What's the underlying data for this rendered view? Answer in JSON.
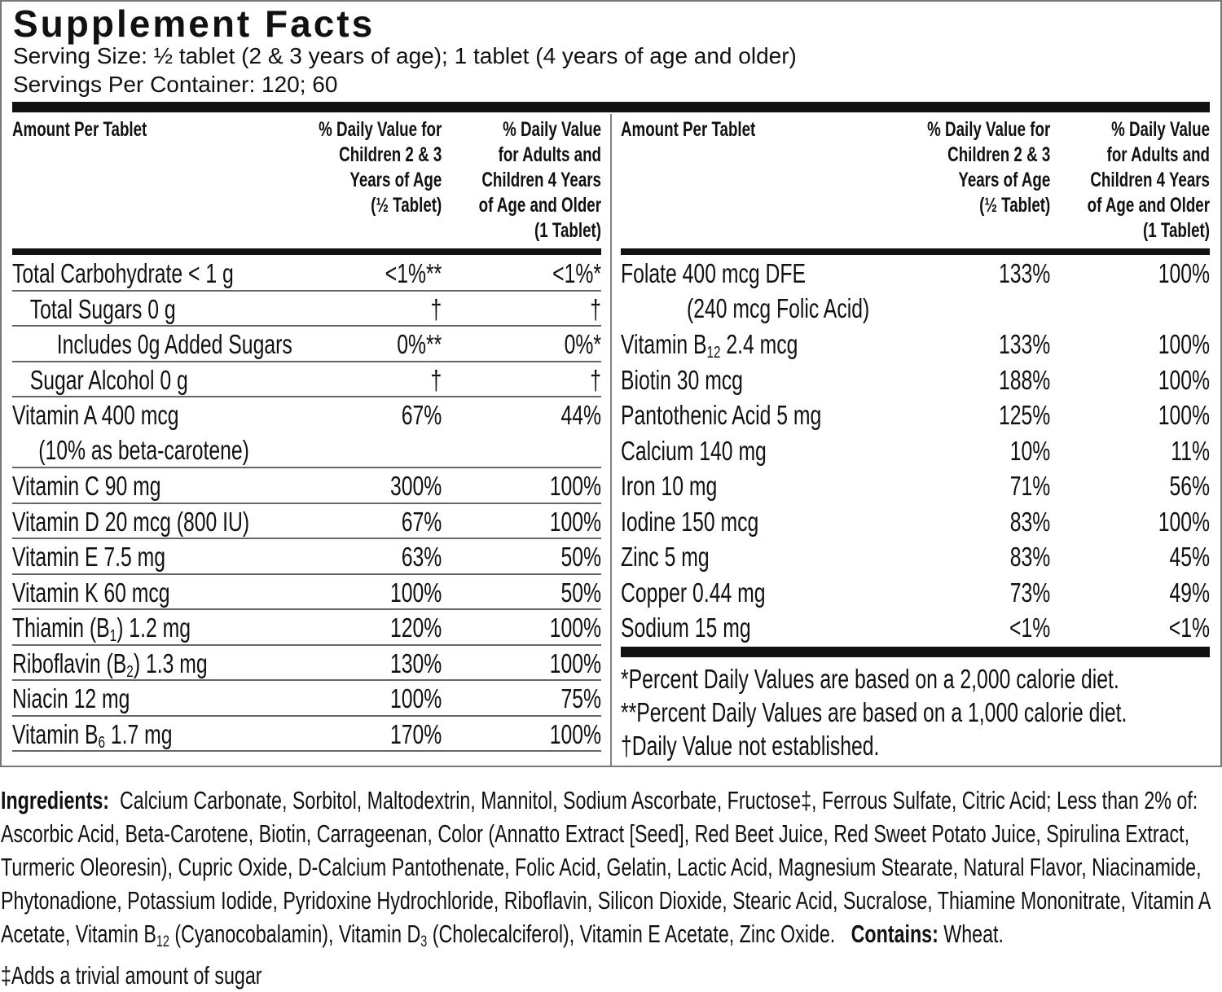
{
  "header": {
    "title": "Supplement Facts",
    "serving_size": "Serving Size:  ½ tablet (2 & 3 years of age); 1 tablet (4 years of age and older)",
    "servings_per_container": "Servings Per Container:  120; 60"
  },
  "columns": [
    [
      "Amount Per Tablet"
    ],
    [
      "% Daily Value for",
      "Children 2 & 3",
      "Years of Age",
      "(½ Tablet)"
    ],
    [
      "% Daily Value",
      "for Adults and",
      "Children 4 Years",
      "of Age and Older",
      "(1 Tablet)"
    ]
  ],
  "left_rows": [
    {
      "label": [
        "Total Carbohydrate < 1 g"
      ],
      "children": "<1%**",
      "adults": "<1%*"
    },
    {
      "label": [
        "Total Sugars 0 g"
      ],
      "children": "†",
      "adults": "†",
      "indent": 1
    },
    {
      "label": [
        "Includes 0g Added Sugars"
      ],
      "children": "0%**",
      "adults": "0%*",
      "indent": 2
    },
    {
      "label": [
        "Sugar Alcohol 0 g"
      ],
      "children": "†",
      "adults": "†",
      "indent": 1
    },
    {
      "label": [
        "Vitamin A 400 mcg"
      ],
      "note": "(10% as beta-carotene)",
      "children": "67%",
      "adults": "44%"
    },
    {
      "label": [
        "Vitamin C 90 mg"
      ],
      "children": "300%",
      "adults": "100%"
    },
    {
      "label": [
        "Vitamin D 20 mcg (800 IU)"
      ],
      "children": "67%",
      "adults": "100%"
    },
    {
      "label": [
        "Vitamin E 7.5 mg"
      ],
      "children": "63%",
      "adults": "50%"
    },
    {
      "label": [
        "Vitamin K 60 mcg"
      ],
      "children": "100%",
      "adults": "50%"
    },
    {
      "label": [
        "Thiamin (B",
        "1",
        ") 1.2 mg"
      ],
      "children": "120%",
      "adults": "100%"
    },
    {
      "label": [
        "Riboflavin (B",
        "2",
        ") 1.3 mg"
      ],
      "children": "130%",
      "adults": "100%"
    },
    {
      "label": [
        "Niacin 12 mg"
      ],
      "children": "100%",
      "adults": "75%"
    },
    {
      "label": [
        "Vitamin B",
        "6",
        " 1.7 mg"
      ],
      "children": "170%",
      "adults": "100%"
    }
  ],
  "right_rows": [
    {
      "label": [
        "Folate 400 mcg DFE"
      ],
      "note": "(240 mcg Folic Acid)",
      "children": "133%",
      "adults": "100%"
    },
    {
      "label": [
        "Vitamin B",
        "12",
        " 2.4 mcg"
      ],
      "children": "133%",
      "adults": "100%"
    },
    {
      "label": [
        "Biotin 30 mcg"
      ],
      "children": "188%",
      "adults": "100%"
    },
    {
      "label": [
        "Pantothenic Acid 5 mg"
      ],
      "children": "125%",
      "adults": "100%"
    },
    {
      "label": [
        "Calcium 140 mg"
      ],
      "children": "10%",
      "adults": "11%"
    },
    {
      "label": [
        "Iron 10 mg"
      ],
      "children": "71%",
      "adults": "56%"
    },
    {
      "label": [
        "Iodine 150 mcg"
      ],
      "children": "83%",
      "adults": "100%"
    },
    {
      "label": [
        "Zinc 5 mg"
      ],
      "children": "83%",
      "adults": "45%"
    },
    {
      "label": [
        "Copper 0.44 mg"
      ],
      "children": "73%",
      "adults": "49%"
    },
    {
      "label": [
        "Sodium 15 mg"
      ],
      "children": "<1%",
      "adults": "<1%"
    }
  ],
  "footnotes": [
    "*Percent Daily Values are based on a 2,000 calorie diet.",
    "**Percent Daily Values are based on a 1,000 calorie diet.",
    "†Daily Value not established."
  ],
  "ingredients": {
    "label": "Ingredients:",
    "text": [
      "Calcium Carbonate, Sorbitol, Maltodextrin, Mannitol, Sodium Ascorbate, Fructose‡, Ferrous Sulfate, Citric Acid; Less than 2% of: Ascorbic Acid, Beta-Carotene, Biotin, Carrageenan, Color (Annatto Extract [Seed], Red Beet Juice, Red Sweet Potato Juice, Spirulina Extract, Turmeric Oleoresin), Cupric Oxide, D-Calcium Pantothenate, Folic Acid, Gelatin, Lactic Acid, Magnesium Stearate, Natural Flavor, Niacinamide, Phytonadione, Potassium Iodide, Pyridoxine Hydrochloride, Riboflavin, Silicon Dioxide, Stearic Acid, Sucralose, Thiamine Mononitrate, Vitamin A Acetate, Vitamin B",
      "12",
      " (Cyanocobalamin), Vitamin D",
      "3",
      " (Cholecalciferol), Vitamin E Acetate, Zinc Oxide."
    ],
    "contains_label": "Contains:",
    "contains_text": "Wheat.",
    "footnote": "‡Adds a trivial amount of sugar"
  }
}
